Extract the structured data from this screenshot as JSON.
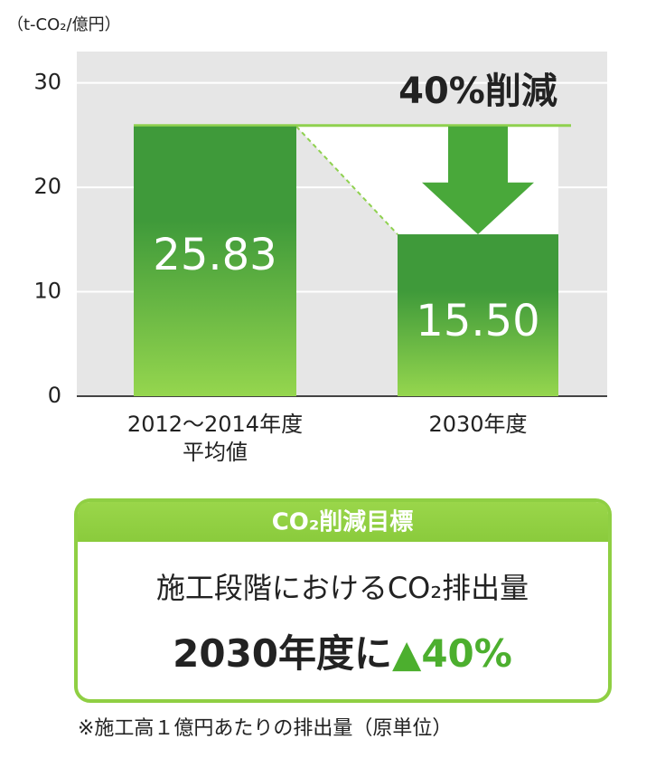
{
  "chart_data": {
    "type": "bar",
    "unit_label": "（t-CO₂/億円）",
    "categories": [
      "2012～2014年度\n平均値",
      "2030年度"
    ],
    "values": [
      25.83,
      15.5
    ],
    "value_labels": [
      "25.83",
      "15.50"
    ],
    "color": "#3f9a3a",
    "ylim": [
      0,
      33
    ],
    "yticks": [
      0,
      10,
      20,
      30
    ],
    "grid": true,
    "annotation": "40%削減"
  },
  "target_box": {
    "title": "CO₂削減目標",
    "line1": "施工段階におけるCO₂排出量",
    "line2_prefix": "2030年度に",
    "line2_highlight": "▲40%"
  },
  "footnote": "※施工高１億円あたりの排出量（原単位）"
}
